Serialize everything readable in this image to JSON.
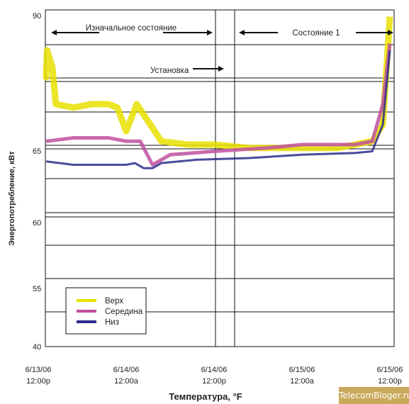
{
  "chart_data": {
    "type": "line",
    "xlabel": "Температура, °F",
    "ylabel": "Энергопотребление, кВт",
    "y_ticks": [
      "90",
      "65",
      "60",
      "55",
      "40"
    ],
    "x_ticks": [
      {
        "date": "6/13/06",
        "time": "12:00p"
      },
      {
        "date": "6/14/06",
        "time": "12:00a"
      },
      {
        "date": "6/14/06",
        "time": "12:00p"
      },
      {
        "date": "6/15/06",
        "time": "12:00a"
      },
      {
        "date": "6/15/06",
        "time": "12:00p"
      }
    ],
    "grid": "horizontal",
    "legend_position": "bottom-left",
    "annotations": {
      "initial_state": "Изначальное состояние",
      "installation": "Установка",
      "state_1": "Состояние 1"
    },
    "series": [
      {
        "name": "Верх",
        "color": "#e8e000",
        "points": [
          [
            0,
            0.82
          ],
          [
            0.02,
            0.8
          ],
          [
            0.05,
            0.88
          ],
          [
            0.08,
            0.83
          ],
          [
            0.1,
            0.72
          ],
          [
            0.2,
            0.71
          ],
          [
            0.3,
            0.72
          ],
          [
            0.4,
            0.72
          ],
          [
            0.45,
            0.71
          ],
          [
            0.5,
            0.64
          ],
          [
            0.56,
            0.72
          ],
          [
            0.7,
            0.61
          ],
          [
            0.85,
            0.6
          ],
          [
            1.0,
            0.6
          ],
          [
            1.2,
            0.59
          ],
          [
            1.4,
            0.59
          ],
          [
            1.6,
            0.59
          ],
          [
            1.7,
            0.59
          ],
          [
            1.8,
            0.6
          ],
          [
            1.9,
            0.61
          ],
          [
            1.96,
            0.66
          ],
          [
            2.0,
            0.98
          ]
        ]
      },
      {
        "name": "Середина",
        "color": "#c050a0",
        "points": [
          [
            0,
            0.61
          ],
          [
            0.2,
            0.62
          ],
          [
            0.4,
            0.62
          ],
          [
            0.5,
            0.61
          ],
          [
            0.58,
            0.61
          ],
          [
            0.62,
            0.57
          ],
          [
            0.65,
            0.54
          ],
          [
            0.75,
            0.57
          ],
          [
            1.0,
            0.58
          ],
          [
            1.3,
            0.59
          ],
          [
            1.5,
            0.6
          ],
          [
            1.8,
            0.6
          ],
          [
            1.9,
            0.61
          ],
          [
            1.96,
            0.72
          ],
          [
            2.0,
            0.9
          ]
        ]
      },
      {
        "name": "Низ",
        "color": "#2c2c8c",
        "points": [
          [
            0,
            0.55
          ],
          [
            0.2,
            0.54
          ],
          [
            0.4,
            0.54
          ],
          [
            0.5,
            0.54
          ],
          [
            0.55,
            0.545
          ],
          [
            0.6,
            0.53
          ],
          [
            0.65,
            0.53
          ],
          [
            0.7,
            0.545
          ],
          [
            0.9,
            0.555
          ],
          [
            1.2,
            0.56
          ],
          [
            1.5,
            0.57
          ],
          [
            1.8,
            0.575
          ],
          [
            1.9,
            0.58
          ],
          [
            1.96,
            0.66
          ],
          [
            2.0,
            0.88
          ]
        ]
      }
    ],
    "series_note": "x in days from 6/13/06 12:00p; y as level between axis 40 (0) and 90 (1)"
  },
  "watermark": "TelecomBloger.ru"
}
